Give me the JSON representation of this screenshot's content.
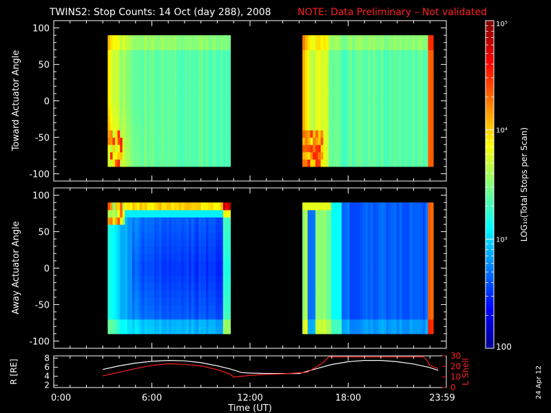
{
  "title": {
    "main": "TWINS2: Stop Counts: 14 Oct (day 288), 2008",
    "note": "NOTE: Data Preliminary – Not validated"
  },
  "date_stamp": "24 Apr 12",
  "colors": {
    "background": "#000000",
    "axis": "#ffffff",
    "note": "#ff2020",
    "lshell": "#ff2020",
    "radius": "#ffffff"
  },
  "chart_data": [
    {
      "type": "heatmap",
      "name": "toward",
      "ylabel": "Toward Actuator Angle",
      "ylim": [
        -110,
        110
      ],
      "yticks": [
        100,
        50,
        0,
        -50,
        -100
      ],
      "y_range_data": [
        -90,
        90
      ],
      "segments": [
        {
          "start_h": 3.3,
          "end_h": 10.8
        },
        {
          "start_h": 15.2,
          "end_h": 23.2
        }
      ]
    },
    {
      "type": "heatmap",
      "name": "away",
      "ylabel": "Away Actuator Angle",
      "ylim": [
        -110,
        110
      ],
      "yticks": [
        100,
        50,
        0,
        -50,
        -100
      ],
      "y_range_data": [
        -90,
        90
      ],
      "segments": [
        {
          "start_h": 3.3,
          "end_h": 10.8
        },
        {
          "start_h": 15.2,
          "end_h": 23.2
        }
      ]
    },
    {
      "type": "line",
      "name": "ephemeris",
      "xlabel": "Time (UT)",
      "xlim": [
        0,
        24
      ],
      "xticks": [
        0,
        6,
        12,
        18,
        24
      ],
      "xticklabels": [
        "0:00",
        "6:00",
        "12:00",
        "18:00",
        "23:59"
      ],
      "left_axis": {
        "label": "R [RE]",
        "ylim": [
          1.5,
          8.5
        ],
        "yticks": [
          2,
          4,
          6,
          8
        ]
      },
      "right_axis": {
        "label": "L Shell",
        "ylim": [
          0,
          30
        ],
        "yticks": [
          0,
          10,
          20,
          30
        ]
      },
      "series": [
        {
          "name": "R",
          "axis": "left",
          "x": [
            3,
            4,
            5,
            6,
            7,
            8,
            9,
            10,
            10.8,
            11.5,
            12,
            13,
            14,
            15,
            16,
            17,
            18,
            19,
            20,
            21,
            22,
            23,
            23.5
          ],
          "values": [
            5.5,
            6.3,
            6.9,
            7.3,
            7.5,
            7.4,
            7.0,
            6.3,
            5.6,
            4.8,
            4.7,
            4.6,
            4.6,
            4.6,
            5.6,
            6.6,
            7.2,
            7.5,
            7.5,
            7.2,
            6.7,
            5.9,
            5.3
          ]
        },
        {
          "name": "L Shell",
          "axis": "right",
          "x": [
            3,
            4,
            5,
            6,
            7,
            8,
            9,
            10,
            10.8,
            11,
            12,
            13,
            14,
            15,
            15.5,
            16,
            16.5,
            16.8,
            22.6,
            22.8,
            23,
            23.5
          ],
          "values": [
            11,
            14.5,
            18,
            21,
            22.5,
            22,
            20.5,
            17,
            12.5,
            10,
            11.5,
            12.5,
            13,
            14,
            14.5,
            19,
            24,
            29,
            29,
            26,
            21,
            18
          ]
        }
      ]
    }
  ],
  "colorbar": {
    "label": "LOG₁₀(Total Stops per Scan)",
    "scale": "log",
    "range": [
      100,
      100000
    ],
    "ticks": [
      "10⁵",
      "10⁴",
      "10³",
      "100"
    ],
    "tick_values": [
      100000,
      10000,
      1000,
      100
    ]
  }
}
